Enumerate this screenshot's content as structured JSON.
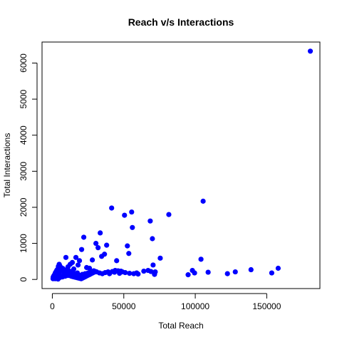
{
  "chart_data": {
    "type": "scatter",
    "title": "Reach v/s Interactions",
    "xlabel": "Total Reach",
    "ylabel": "Total Interactions",
    "xlim": [
      -7200,
      187200
    ],
    "ylim": [
      -253,
      6583
    ],
    "xticks": [
      0,
      50000,
      100000,
      150000
    ],
    "xtick_labels": [
      "0",
      "50000",
      "100000",
      "150000"
    ],
    "yticks": [
      0,
      1000,
      2000,
      3000,
      4000,
      5000,
      6000
    ],
    "ytick_labels": [
      "0",
      "1000",
      "2000",
      "3000",
      "4000",
      "5000",
      "6000"
    ],
    "grid": false,
    "legend": "none",
    "point_color": "#0000ff",
    "series": [
      {
        "x": [
          180500,
          105500,
          41500,
          50500,
          55500,
          81500,
          68500,
          56000,
          22000,
          33500,
          70000,
          30500,
          52500,
          38000,
          32000,
          20500,
          53500,
          36500,
          34500,
          104000,
          75500,
          12500,
          19000,
          14000,
          16500,
          9500,
          28000,
          45000,
          70500,
          99500,
          158000,
          139000,
          128000,
          153500,
          122500,
          109000,
          95000,
          98000,
          72000,
          67000,
          64000,
          69000,
          71500,
          59000,
          47000,
          43500,
          40000,
          37000,
          26000,
          24000,
          18000,
          15000,
          11000,
          8000,
          6000,
          4500,
          3000,
          2000,
          1000,
          500,
          1500,
          2500,
          3500,
          5000,
          5500,
          6500,
          7000,
          7500,
          8500,
          9000,
          10000,
          10500,
          11500,
          12000,
          13000,
          13500,
          14500,
          15500,
          16000,
          17000,
          17500,
          18500,
          19500,
          21000,
          23000,
          25000,
          27000,
          29000,
          31000,
          33000,
          35000,
          39000,
          42000,
          44000,
          46000,
          48000,
          49000,
          51000,
          54000,
          57000,
          60000,
          4000,
          3200,
          2800,
          2200,
          1800,
          1200,
          800,
          600,
          4200,
          4800,
          5200,
          5800,
          6200,
          6800,
          7200,
          7800,
          8200,
          8800,
          9200,
          9800,
          10200,
          10800,
          11200,
          11800,
          12200,
          12800,
          13200,
          14200,
          15200,
          16200,
          17200,
          18200,
          19200,
          20200,
          21200,
          22200,
          23200,
          24200,
          25200,
          26200,
          27200,
          28200,
          29200,
          30200,
          3000,
          5000,
          7000,
          9000,
          11000,
          13000,
          6000,
          8000,
          10000,
          12000,
          4000,
          2000,
          3500,
          5500,
          7500,
          9500,
          11500,
          13500,
          15500,
          17500
        ],
        "y": [
          6330,
          2170,
          1980,
          1780,
          1870,
          1800,
          1620,
          1440,
          1170,
          1290,
          1130,
          1000,
          930,
          950,
          880,
          830,
          720,
          700,
          640,
          560,
          590,
          420,
          520,
          470,
          610,
          610,
          540,
          520,
          400,
          180,
          310,
          270,
          210,
          180,
          160,
          200,
          130,
          250,
          210,
          250,
          230,
          220,
          140,
          180,
          170,
          200,
          160,
          190,
          310,
          330,
          400,
          290,
          350,
          260,
          230,
          160,
          110,
          80,
          40,
          20,
          60,
          120,
          180,
          200,
          280,
          320,
          260,
          300,
          240,
          220,
          260,
          200,
          180,
          230,
          210,
          190,
          170,
          150,
          160,
          140,
          130,
          120,
          110,
          140,
          160,
          180,
          200,
          240,
          210,
          180,
          160,
          210,
          220,
          250,
          240,
          230,
          210,
          190,
          170,
          160,
          150,
          300,
          260,
          230,
          190,
          150,
          110,
          80,
          60,
          360,
          420,
          380,
          340,
          300,
          280,
          250,
          230,
          210,
          190,
          170,
          160,
          150,
          140,
          130,
          120,
          110,
          100,
          90,
          80,
          70,
          60,
          50,
          40,
          30,
          20,
          40,
          60,
          80,
          100,
          120,
          140,
          160,
          180,
          200,
          220,
          30,
          50,
          70,
          90,
          110,
          130,
          90,
          120,
          150,
          180,
          10,
          20,
          40,
          60,
          80,
          100,
          120,
          140,
          160,
          180
        ]
      }
    ]
  }
}
